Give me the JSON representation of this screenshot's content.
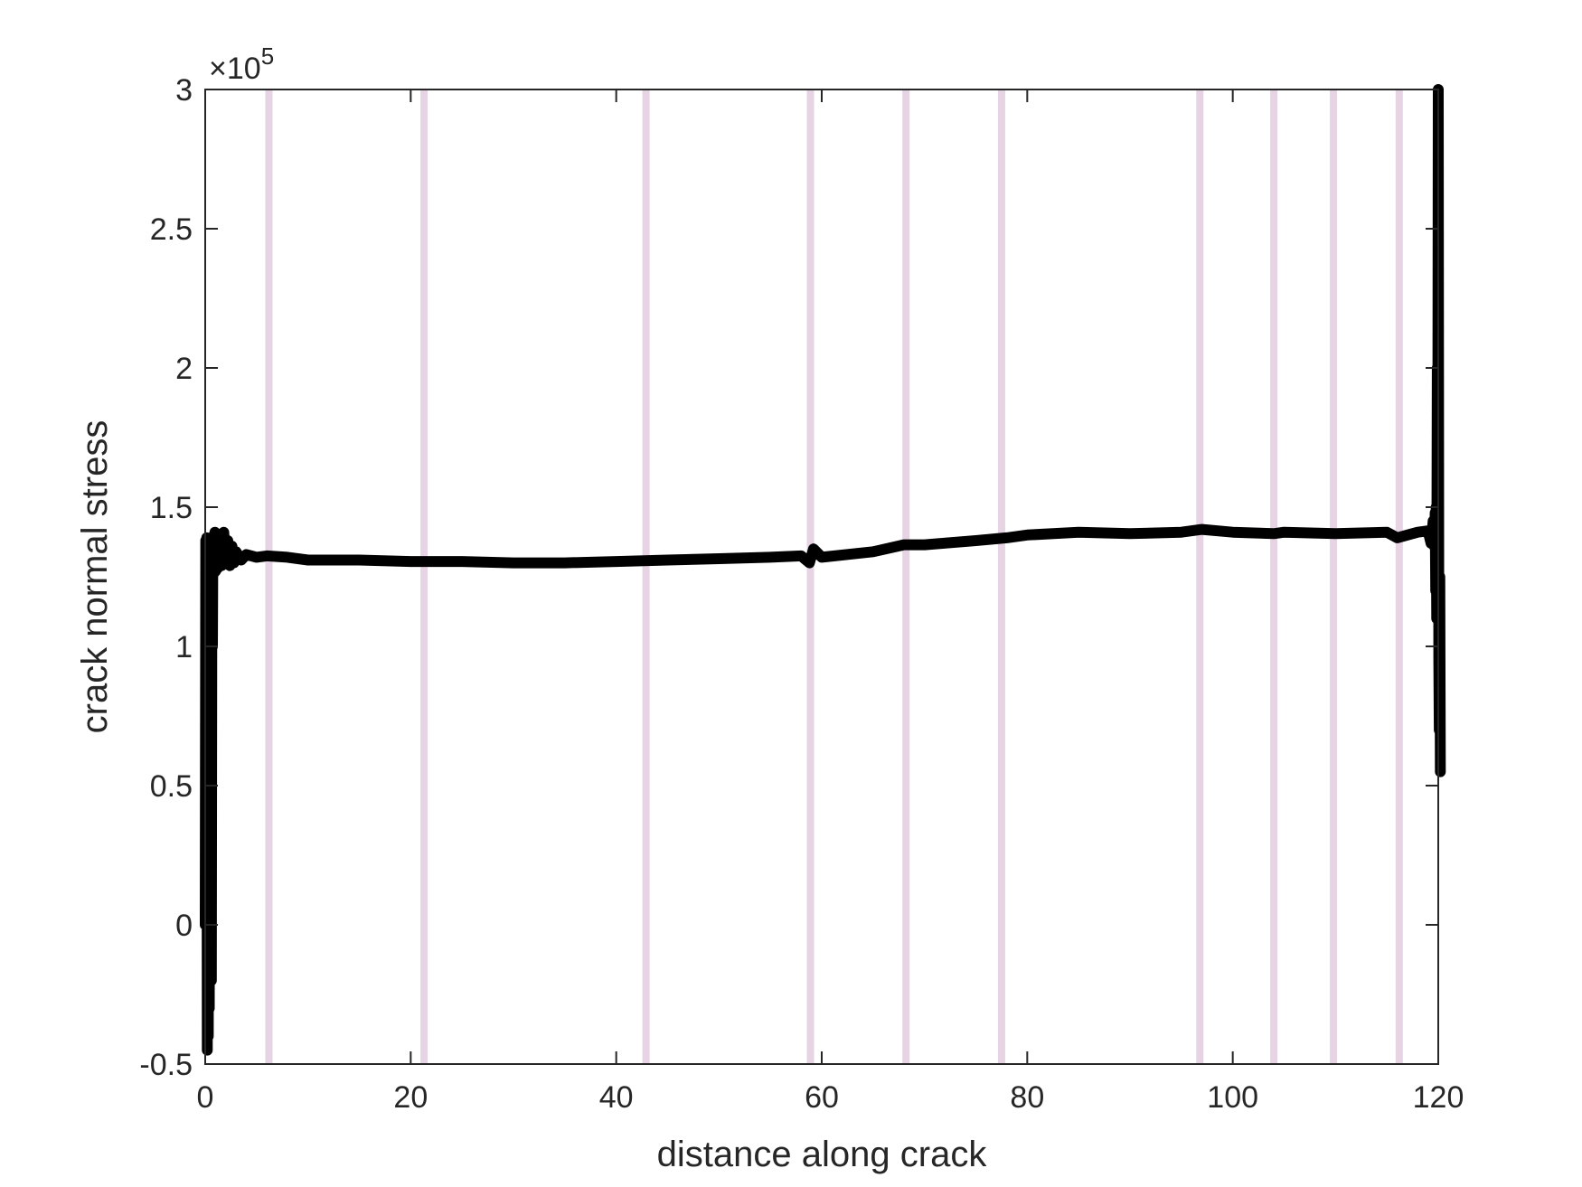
{
  "chart_data": {
    "type": "line",
    "title": "",
    "xlabel": "distance along crack",
    "ylabel": "crack normal stress",
    "y_exponent_label": "×10",
    "y_exponent_power": "5",
    "xlim": [
      0,
      120
    ],
    "ylim": [
      -50000,
      300000
    ],
    "x_ticks": [
      0,
      20,
      40,
      60,
      80,
      100,
      120
    ],
    "x_tick_labels": [
      "0",
      "20",
      "40",
      "60",
      "80",
      "100",
      "120"
    ],
    "y_ticks": [
      -50000,
      0,
      50000,
      100000,
      150000,
      200000,
      250000,
      300000
    ],
    "y_tick_labels": [
      "-0.5",
      "0",
      "0.5",
      "1",
      "1.5",
      "2",
      "2.5",
      "3"
    ],
    "grid": false,
    "vertical_markers": {
      "color": "#e6d3e3",
      "x": [
        6.2,
        21.3,
        42.9,
        58.9,
        68.2,
        77.5,
        96.8,
        104.0,
        109.8,
        116.2
      ]
    },
    "series": [
      {
        "color": "#000000",
        "x": [
          0,
          0.05,
          0.1,
          0.15,
          0.2,
          0.25,
          0.3,
          0.35,
          0.4,
          0.45,
          0.5,
          0.55,
          0.6,
          0.65,
          0.7,
          0.75,
          0.8,
          0.85,
          0.9,
          0.95,
          1.0,
          1.1,
          1.2,
          1.4,
          1.6,
          1.8,
          2.0,
          2.2,
          2.4,
          2.6,
          2.8,
          3.0,
          3.5,
          4.0,
          5.0,
          6.0,
          8.0,
          10,
          15,
          20,
          25,
          30,
          35,
          40,
          45,
          50,
          55,
          58,
          58.8,
          59.2,
          60,
          65,
          68,
          70,
          75,
          78,
          80,
          85,
          90,
          95,
          97,
          100,
          104,
          105,
          110,
          115,
          116,
          118,
          119,
          119.3,
          119.5,
          119.6,
          119.7,
          119.75,
          119.8,
          119.85,
          119.9,
          119.95,
          120.0,
          120.05,
          120.1,
          120.15,
          120.2
        ],
        "y": [
          0,
          138000,
          20000,
          139000,
          -45000,
          130000,
          -40000,
          138000,
          -30000,
          135000,
          60000,
          138000,
          -20000,
          137000,
          100000,
          139000,
          126000,
          140000,
          128000,
          141000,
          127000,
          140000,
          128000,
          136000,
          129000,
          141000,
          130000,
          138000,
          129000,
          136000,
          130000,
          134000,
          131000,
          133000,
          132000,
          132500,
          132000,
          131000,
          131000,
          130500,
          130500,
          130000,
          130000,
          130500,
          131000,
          131500,
          132000,
          132500,
          130000,
          135000,
          132000,
          134000,
          136500,
          136500,
          138000,
          139000,
          140000,
          141000,
          140500,
          141000,
          142000,
          141000,
          140500,
          141000,
          140500,
          141000,
          139000,
          141000,
          141500,
          137000,
          145000,
          136000,
          148000,
          120000,
          150000,
          110000,
          200000,
          140000,
          300000,
          95000,
          70000,
          125000,
          55000
        ]
      }
    ]
  }
}
